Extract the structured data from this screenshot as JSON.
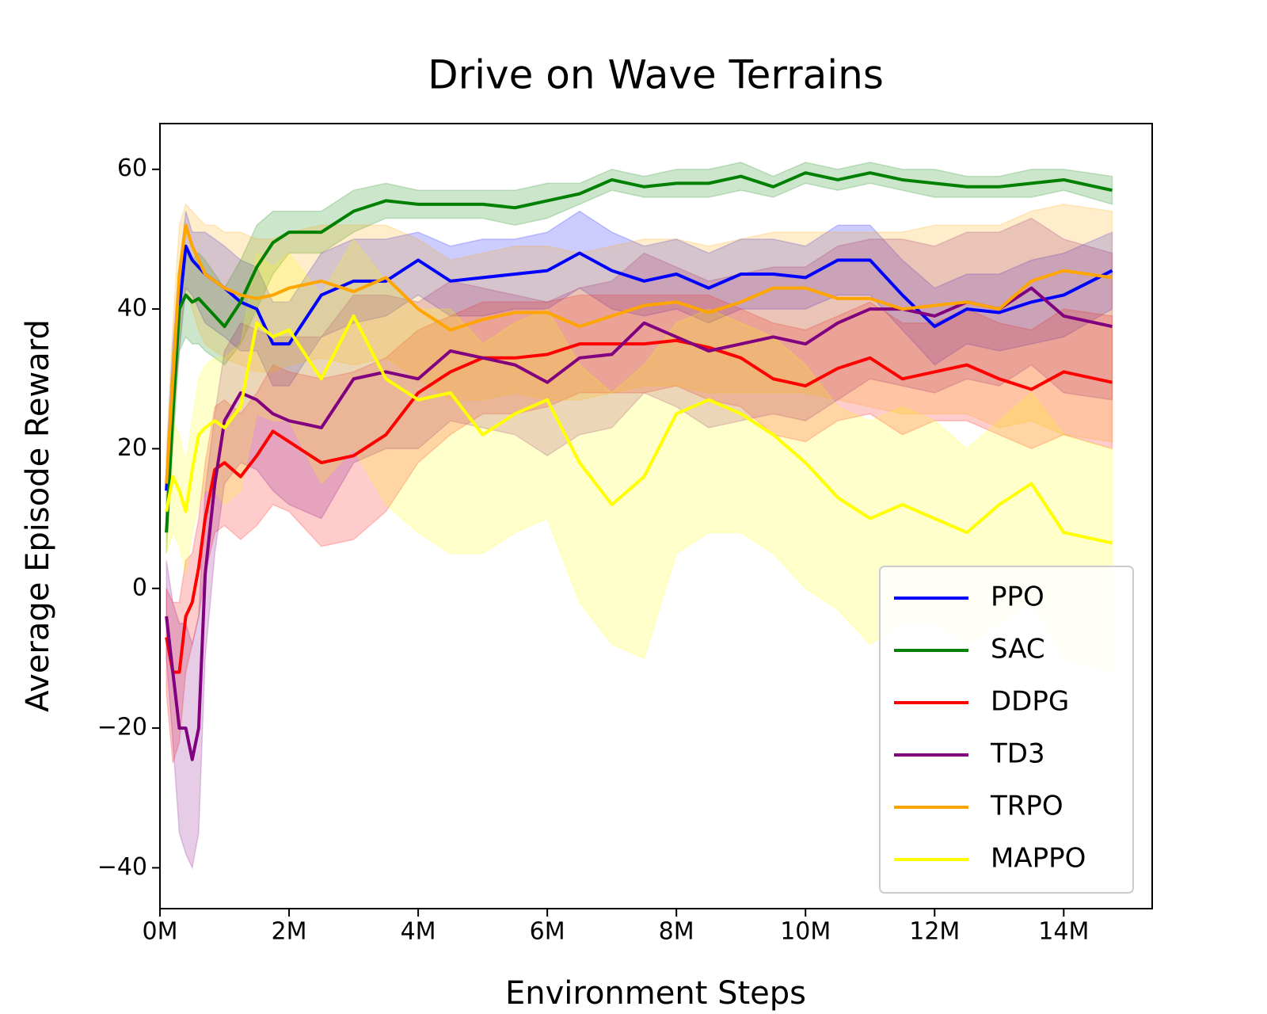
{
  "chart_data": {
    "type": "line",
    "title": "Drive on Wave Terrains",
    "x_label": "Environment Steps",
    "y_label": "Average Episode Reward",
    "xlim": [
      0,
      15.37
    ],
    "ylim": [
      -45.85,
      66.55
    ],
    "xticks": [
      {
        "value": 0,
        "label": "0M"
      },
      {
        "value": 2,
        "label": "2M"
      },
      {
        "value": 4,
        "label": "4M"
      },
      {
        "value": 6,
        "label": "6M"
      },
      {
        "value": 8,
        "label": "8M"
      },
      {
        "value": 10,
        "label": "10M"
      },
      {
        "value": 12,
        "label": "12M"
      },
      {
        "value": 14,
        "label": "14M"
      }
    ],
    "yticks": [
      {
        "value": -40,
        "label": "−40"
      },
      {
        "value": -20,
        "label": "−20"
      },
      0,
      20,
      40,
      60
    ],
    "grid": false,
    "legend": "lower right",
    "band_opacity": 0.2,
    "x": [
      0.1,
      0.2,
      0.3,
      0.4,
      0.5,
      0.6,
      0.7,
      0.85,
      1.0,
      1.25,
      1.5,
      1.75,
      2.0,
      2.5,
      3.0,
      3.5,
      4.0,
      4.5,
      5.0,
      5.5,
      6.0,
      6.5,
      7.0,
      7.5,
      8.0,
      8.5,
      9.0,
      9.5,
      10.0,
      10.5,
      11.0,
      11.5,
      12.0,
      12.5,
      13.0,
      13.5,
      14.0,
      14.75
    ],
    "series": [
      {
        "name": "PPO",
        "color": "#0000ff",
        "values": [
          14,
          30,
          40,
          49,
          47,
          46,
          45,
          44,
          43,
          41,
          40,
          35,
          35,
          42,
          44,
          44,
          47,
          44,
          44.5,
          45,
          45.5,
          48,
          45.5,
          44,
          45,
          43,
          45,
          45,
          44.5,
          47,
          47,
          42,
          37.5,
          40,
          39.5,
          41,
          42,
          45.5
        ],
        "lower": [
          10,
          25,
          34,
          43,
          42,
          40,
          38,
          37,
          36,
          34,
          34,
          29,
          29,
          36,
          38,
          39,
          42,
          39,
          39,
          40,
          40,
          43,
          40,
          39,
          40,
          38,
          40,
          40,
          40,
          42,
          42,
          37,
          32,
          35,
          34,
          35,
          36,
          40
        ],
        "upper": [
          18,
          35,
          46,
          54,
          51,
          51,
          51,
          50,
          49,
          47,
          46,
          41,
          41,
          48,
          50,
          50,
          51,
          49,
          50,
          50,
          51,
          54,
          51,
          49,
          50,
          48,
          50,
          50,
          49,
          52,
          52,
          47,
          43,
          45,
          45,
          47,
          48,
          51
        ]
      },
      {
        "name": "SAC",
        "color": "#008000",
        "values": [
          8,
          25,
          40,
          42,
          41,
          41.5,
          40.5,
          39,
          37.5,
          41,
          46,
          49.5,
          51,
          51,
          54,
          55.5,
          55,
          55,
          55,
          54.5,
          55.5,
          56.5,
          58.5,
          57.5,
          58,
          58,
          59,
          57.5,
          59.5,
          58.5,
          59.5,
          58.5,
          58,
          57.5,
          57.5,
          58,
          58.5,
          57
        ],
        "lower": [
          5,
          20,
          34,
          36,
          35,
          35,
          34,
          33,
          32,
          35,
          40,
          45,
          48,
          48,
          51,
          53,
          53,
          53,
          53,
          52,
          53,
          55,
          57,
          56,
          56,
          56,
          57,
          56,
          58,
          57,
          58,
          57,
          56,
          56,
          56,
          56,
          57,
          55
        ],
        "upper": [
          11,
          30,
          46,
          48,
          47,
          48,
          47,
          45,
          43,
          47,
          52,
          54,
          54,
          54,
          57,
          58,
          57,
          57,
          57,
          57,
          58,
          58,
          60,
          59,
          60,
          60,
          61,
          59,
          61,
          60,
          61,
          60,
          60,
          59,
          59,
          60,
          60,
          59
        ]
      },
      {
        "name": "DDPG",
        "color": "#ff0000",
        "values": [
          -7,
          -12,
          -12,
          -4,
          -2,
          3,
          10,
          17,
          18,
          16,
          19,
          22.5,
          21,
          18,
          19,
          22,
          28,
          31,
          33,
          33,
          33.5,
          35,
          35,
          35,
          35.5,
          34.5,
          33,
          30,
          29,
          31.5,
          33,
          30,
          31,
          32,
          30,
          28.5,
          31,
          29.5
        ],
        "lower": [
          -15,
          -25,
          -22,
          -12,
          -8,
          -4,
          2,
          8,
          9,
          7,
          9,
          12,
          11,
          6,
          7,
          11,
          18,
          22,
          25,
          25,
          26,
          28,
          28,
          28,
          29,
          27,
          26,
          22,
          21,
          24,
          25,
          22,
          24,
          24,
          22,
          20,
          22,
          20
        ],
        "upper": [
          0,
          -2,
          -2,
          4,
          5,
          10,
          18,
          26,
          27,
          25,
          28,
          32,
          31,
          30,
          31,
          33,
          37,
          39,
          41,
          41,
          41,
          42,
          42,
          42,
          42,
          42,
          40,
          38,
          37,
          39,
          41,
          38,
          38,
          40,
          38,
          37,
          40,
          39
        ]
      },
      {
        "name": "TD3",
        "color": "#800080",
        "values": [
          -4,
          -12,
          -20,
          -20,
          -24.5,
          -20,
          2,
          15,
          24,
          28,
          27,
          25,
          24,
          23,
          30,
          31,
          30,
          34,
          33,
          32,
          29.5,
          33,
          33.5,
          38,
          36,
          34,
          35,
          36,
          35,
          38,
          40,
          40,
          39,
          41,
          40,
          43,
          39,
          37.5
        ],
        "lower": [
          -10,
          -22,
          -35,
          -38,
          -40,
          -35,
          -10,
          5,
          15,
          18,
          17,
          14,
          12,
          10,
          18,
          20,
          20,
          24,
          23,
          22,
          19,
          22,
          23,
          28,
          26,
          23,
          24,
          25,
          24,
          27,
          30,
          29,
          28,
          30,
          29,
          32,
          28,
          27
        ],
        "upper": [
          4,
          -2,
          -5,
          -5,
          -8,
          -4,
          14,
          25,
          34,
          38,
          37,
          36,
          36,
          36,
          42,
          42,
          41,
          44,
          43,
          42,
          41,
          43,
          44,
          48,
          46,
          44,
          45,
          46,
          46,
          49,
          50,
          50,
          49,
          51,
          51,
          53,
          50,
          48
        ]
      },
      {
        "name": "TRPO",
        "color": "#ffa500",
        "values": [
          15,
          30,
          45,
          52,
          49,
          47,
          45,
          44,
          43,
          42,
          41.5,
          42,
          43,
          44,
          42.5,
          44.5,
          40,
          37,
          38.5,
          39.5,
          39.5,
          37.5,
          39,
          40.5,
          41,
          39.5,
          41,
          43,
          43,
          41.5,
          41.5,
          40,
          40.5,
          41,
          40,
          44,
          45.5,
          44.5
        ],
        "lower": [
          10,
          22,
          35,
          43,
          40,
          37,
          35,
          34,
          33,
          32,
          31,
          31,
          32,
          33,
          32,
          33,
          30,
          27,
          27,
          28,
          27,
          27,
          28,
          29,
          29,
          28,
          28,
          28,
          28,
          27,
          26,
          25,
          25,
          25,
          23,
          24,
          22,
          21
        ],
        "upper": [
          20,
          38,
          52,
          55,
          54,
          53,
          52,
          52,
          51,
          51,
          50,
          50,
          51,
          52,
          52,
          52,
          50,
          47,
          48,
          49,
          49,
          48,
          49,
          50,
          50,
          49,
          50,
          51,
          51,
          51,
          51,
          51,
          52,
          52,
          52,
          54,
          55,
          54
        ]
      },
      {
        "name": "MAPPO",
        "color": "#ffff00",
        "values": [
          11,
          16,
          14,
          11,
          17,
          22,
          23,
          24,
          23,
          26,
          38,
          36,
          37,
          30,
          39,
          30,
          27,
          28,
          22,
          25,
          27,
          18,
          12,
          16,
          25,
          27,
          25,
          22,
          18,
          13,
          10,
          12,
          10,
          8,
          12,
          15,
          8,
          6.5
        ],
        "lower": [
          5,
          8,
          6,
          2,
          8,
          12,
          14,
          14,
          12,
          14,
          25,
          24,
          24,
          15,
          20,
          12,
          8,
          5,
          5,
          8,
          10,
          -2,
          -8,
          -10,
          5,
          8,
          8,
          5,
          0,
          -3,
          -8,
          -5,
          -5,
          -8,
          -5,
          -2,
          -10,
          -12
        ],
        "upper": [
          16,
          24,
          22,
          18,
          24,
          30,
          32,
          33,
          33,
          35,
          48,
          46,
          48,
          42,
          50,
          44,
          40,
          40,
          35,
          38,
          40,
          32,
          28,
          32,
          38,
          40,
          38,
          36,
          32,
          26,
          24,
          26,
          24,
          20,
          24,
          28,
          22,
          20
        ]
      }
    ]
  }
}
